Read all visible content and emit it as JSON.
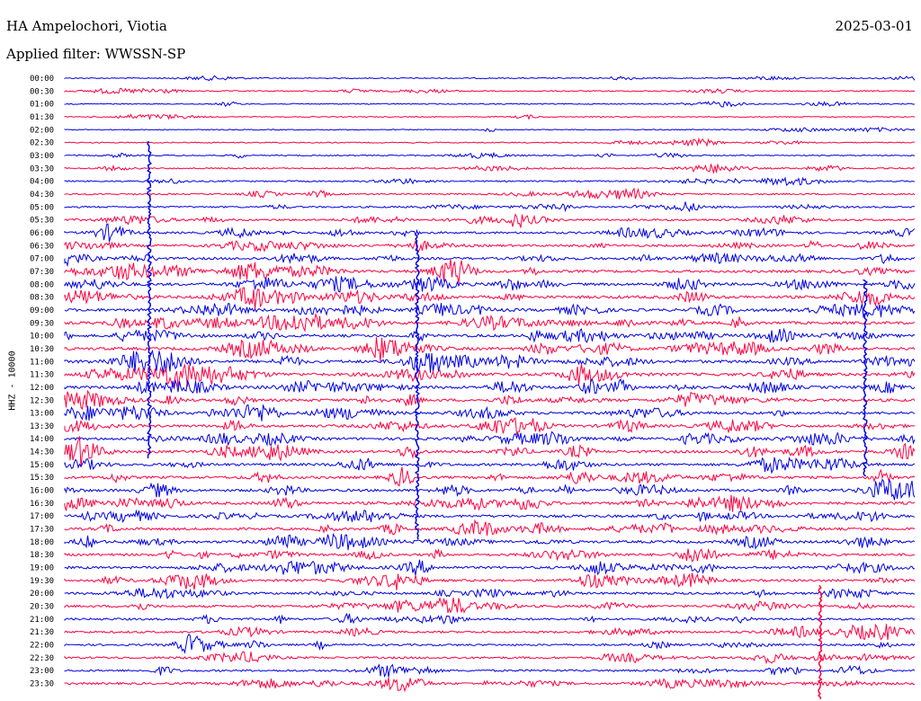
{
  "header": {
    "station": "HA Ampelochori, Viotia",
    "date": "2025-03-01",
    "filter_label": "Applied filter: WWSSN-SP"
  },
  "chart_data": {
    "type": "line",
    "title": "HA Ampelochori, Viotia",
    "ylabel": "HHZ - 10000",
    "xlabel": "",
    "colors": [
      "#0000e6",
      "#ff0040"
    ],
    "traces": [
      {
        "label": "00:00",
        "activity": 0.15,
        "color": "#0000e6"
      },
      {
        "label": "00:30",
        "activity": 0.2,
        "color": "#ff0040"
      },
      {
        "label": "01:00",
        "activity": 0.15,
        "color": "#0000e6"
      },
      {
        "label": "01:30",
        "activity": 0.1,
        "color": "#ff0040"
      },
      {
        "label": "02:00",
        "activity": 0.1,
        "color": "#0000e6"
      },
      {
        "label": "02:30",
        "activity": 0.15,
        "color": "#ff0040"
      },
      {
        "label": "03:00",
        "activity": 0.2,
        "color": "#0000e6"
      },
      {
        "label": "03:30",
        "activity": 0.25,
        "color": "#ff0040"
      },
      {
        "label": "04:00",
        "activity": 0.3,
        "color": "#0000e6"
      },
      {
        "label": "04:30",
        "activity": 0.35,
        "color": "#ff0040"
      },
      {
        "label": "05:00",
        "activity": 0.4,
        "color": "#0000e6"
      },
      {
        "label": "05:30",
        "activity": 0.55,
        "color": "#ff0040"
      },
      {
        "label": "06:00",
        "activity": 0.6,
        "color": "#0000e6"
      },
      {
        "label": "06:30",
        "activity": 0.65,
        "color": "#ff0040"
      },
      {
        "label": "07:00",
        "activity": 0.75,
        "color": "#0000e6"
      },
      {
        "label": "07:30",
        "activity": 0.8,
        "color": "#ff0040"
      },
      {
        "label": "08:00",
        "activity": 0.85,
        "color": "#0000e6"
      },
      {
        "label": "08:30",
        "activity": 0.95,
        "color": "#ff0040"
      },
      {
        "label": "09:00",
        "activity": 0.9,
        "color": "#0000e6"
      },
      {
        "label": "09:30",
        "activity": 0.9,
        "color": "#ff0040"
      },
      {
        "label": "10:00",
        "activity": 0.85,
        "color": "#0000e6"
      },
      {
        "label": "10:30",
        "activity": 0.95,
        "color": "#ff0040"
      },
      {
        "label": "11:00",
        "activity": 1.0,
        "color": "#0000e6"
      },
      {
        "label": "11:30",
        "activity": 0.95,
        "color": "#ff0040"
      },
      {
        "label": "12:00",
        "activity": 0.9,
        "color": "#0000e6"
      },
      {
        "label": "12:30",
        "activity": 0.85,
        "color": "#ff0040"
      },
      {
        "label": "13:00",
        "activity": 0.85,
        "color": "#0000e6"
      },
      {
        "label": "13:30",
        "activity": 0.85,
        "color": "#ff0040"
      },
      {
        "label": "14:00",
        "activity": 0.85,
        "color": "#0000e6"
      },
      {
        "label": "14:30",
        "activity": 0.85,
        "color": "#ff0040"
      },
      {
        "label": "15:00",
        "activity": 0.8,
        "color": "#0000e6"
      },
      {
        "label": "15:30",
        "activity": 0.8,
        "color": "#ff0040"
      },
      {
        "label": "16:00",
        "activity": 0.8,
        "color": "#0000e6"
      },
      {
        "label": "16:30",
        "activity": 0.9,
        "color": "#ff0040"
      },
      {
        "label": "17:00",
        "activity": 0.8,
        "color": "#0000e6"
      },
      {
        "label": "17:30",
        "activity": 0.75,
        "color": "#ff0040"
      },
      {
        "label": "18:00",
        "activity": 0.8,
        "color": "#0000e6"
      },
      {
        "label": "18:30",
        "activity": 0.75,
        "color": "#ff0040"
      },
      {
        "label": "19:00",
        "activity": 0.75,
        "color": "#0000e6"
      },
      {
        "label": "19:30",
        "activity": 0.7,
        "color": "#ff0040"
      },
      {
        "label": "20:00",
        "activity": 0.65,
        "color": "#0000e6"
      },
      {
        "label": "20:30",
        "activity": 0.65,
        "color": "#ff0040"
      },
      {
        "label": "21:00",
        "activity": 0.6,
        "color": "#0000e6"
      },
      {
        "label": "21:30",
        "activity": 0.6,
        "color": "#ff0040"
      },
      {
        "label": "22:00",
        "activity": 0.55,
        "color": "#0000e6"
      },
      {
        "label": "22:30",
        "activity": 0.6,
        "color": "#ff0040"
      },
      {
        "label": "23:00",
        "activity": 0.55,
        "color": "#0000e6"
      },
      {
        "label": "23:30",
        "activity": 0.6,
        "color": "#ff0040"
      }
    ]
  }
}
